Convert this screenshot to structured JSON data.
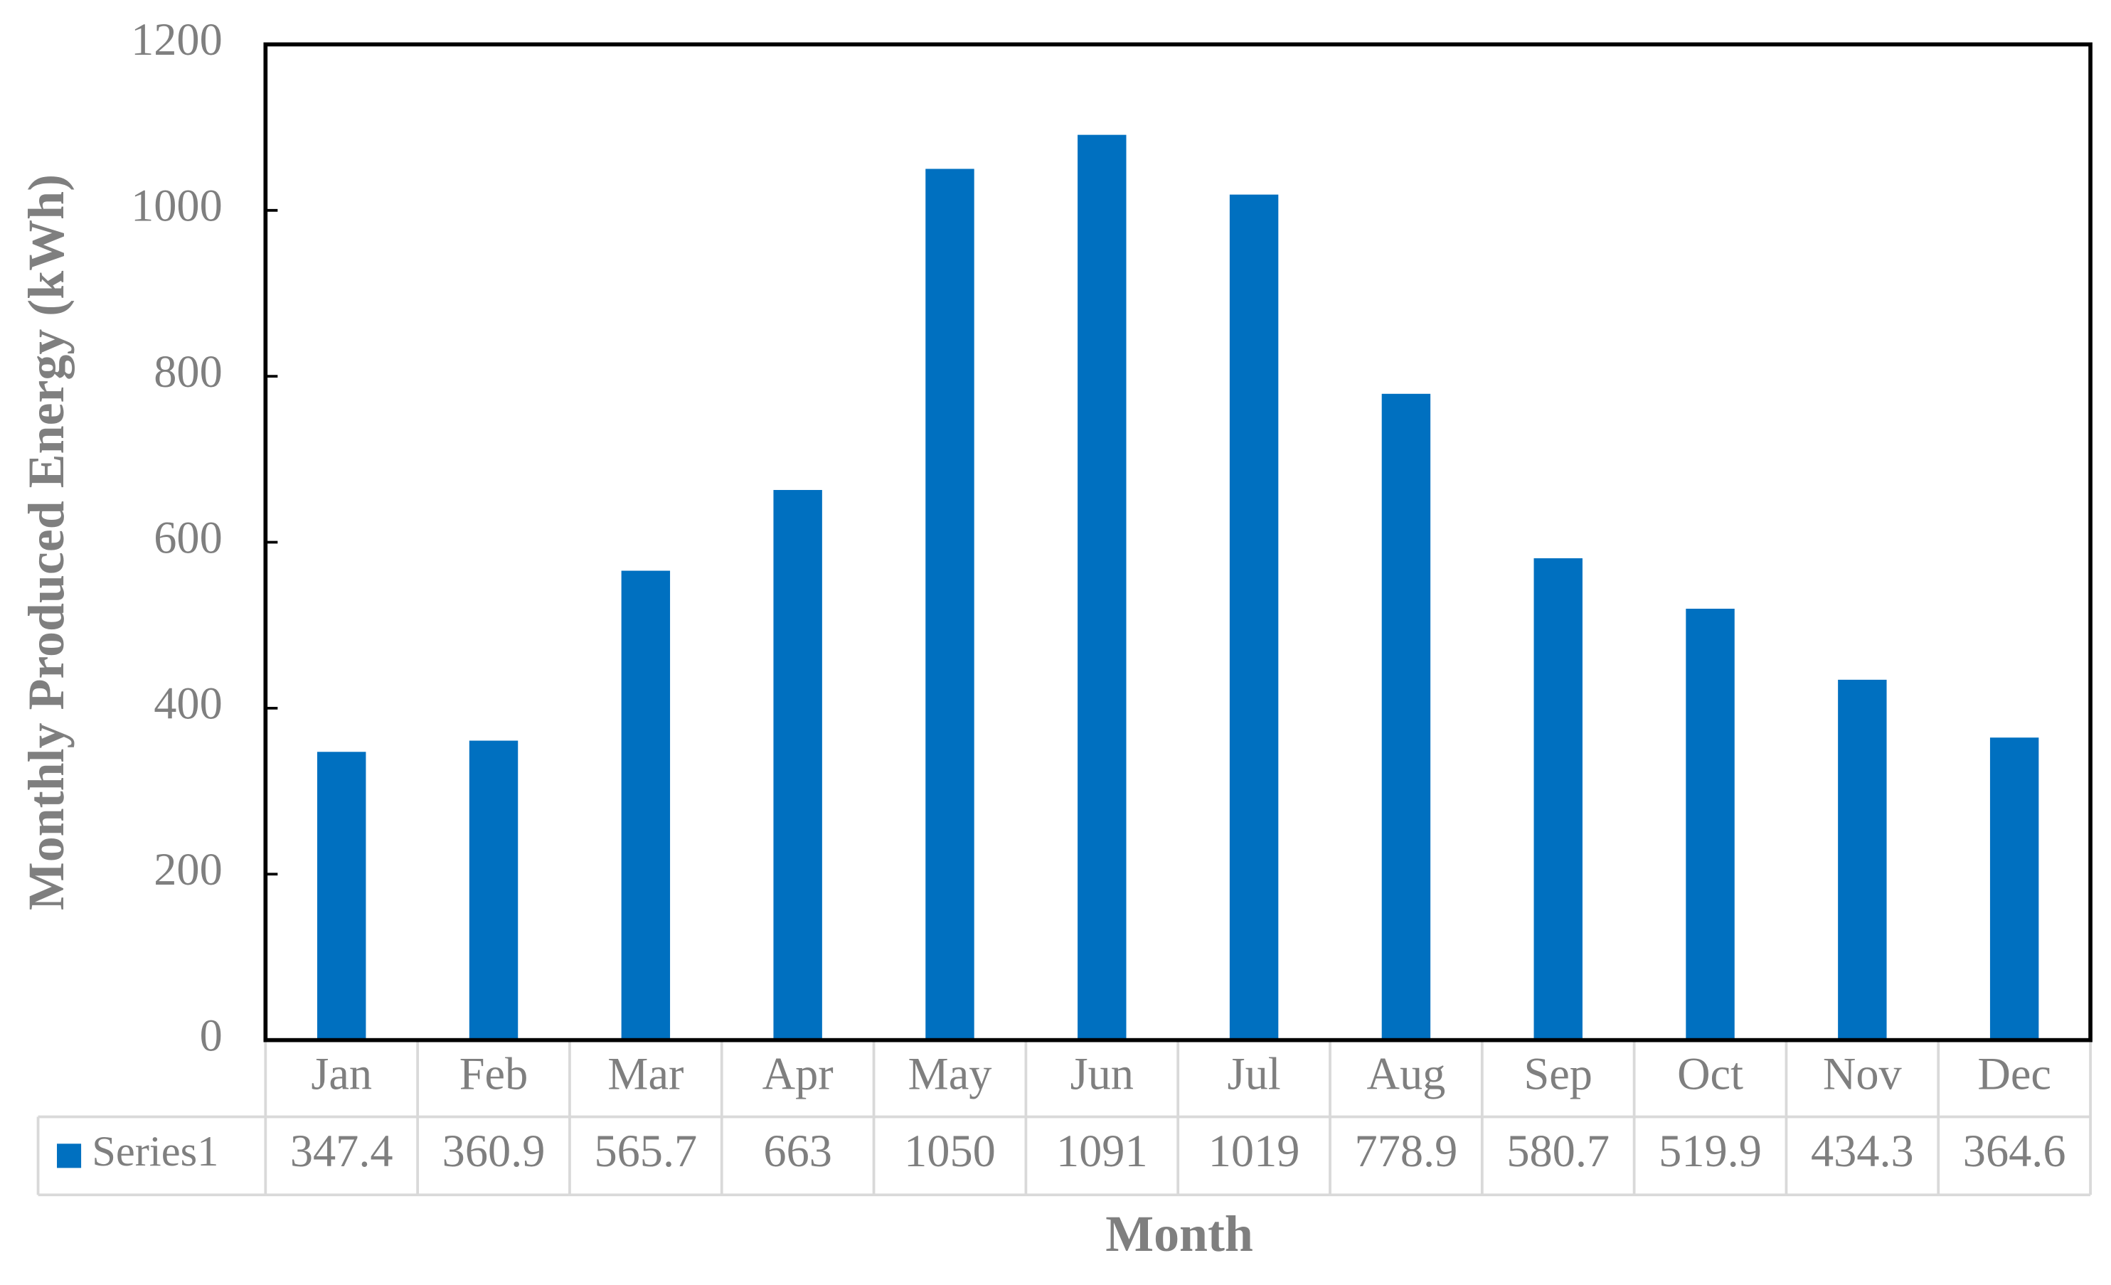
{
  "chart_data": {
    "type": "bar",
    "x_label": "Month",
    "y_label": "Monthly Produced Energy (kWh)",
    "categories": [
      "Jan",
      "Feb",
      "Mar",
      "Apr",
      "May",
      "Jun",
      "Jul",
      "Aug",
      "Sep",
      "Oct",
      "Nov",
      "Dec"
    ],
    "series": [
      {
        "name": "Series1",
        "color": "#0070c0",
        "values": [
          347.4,
          360.9,
          565.7,
          663,
          1050,
          1091,
          1019,
          778.9,
          580.7,
          519.9,
          434.3,
          364.6
        ]
      }
    ],
    "ylim": [
      0,
      1200
    ],
    "yticks": [
      0,
      200,
      400,
      600,
      800,
      1000,
      1200
    ],
    "grid": false
  }
}
